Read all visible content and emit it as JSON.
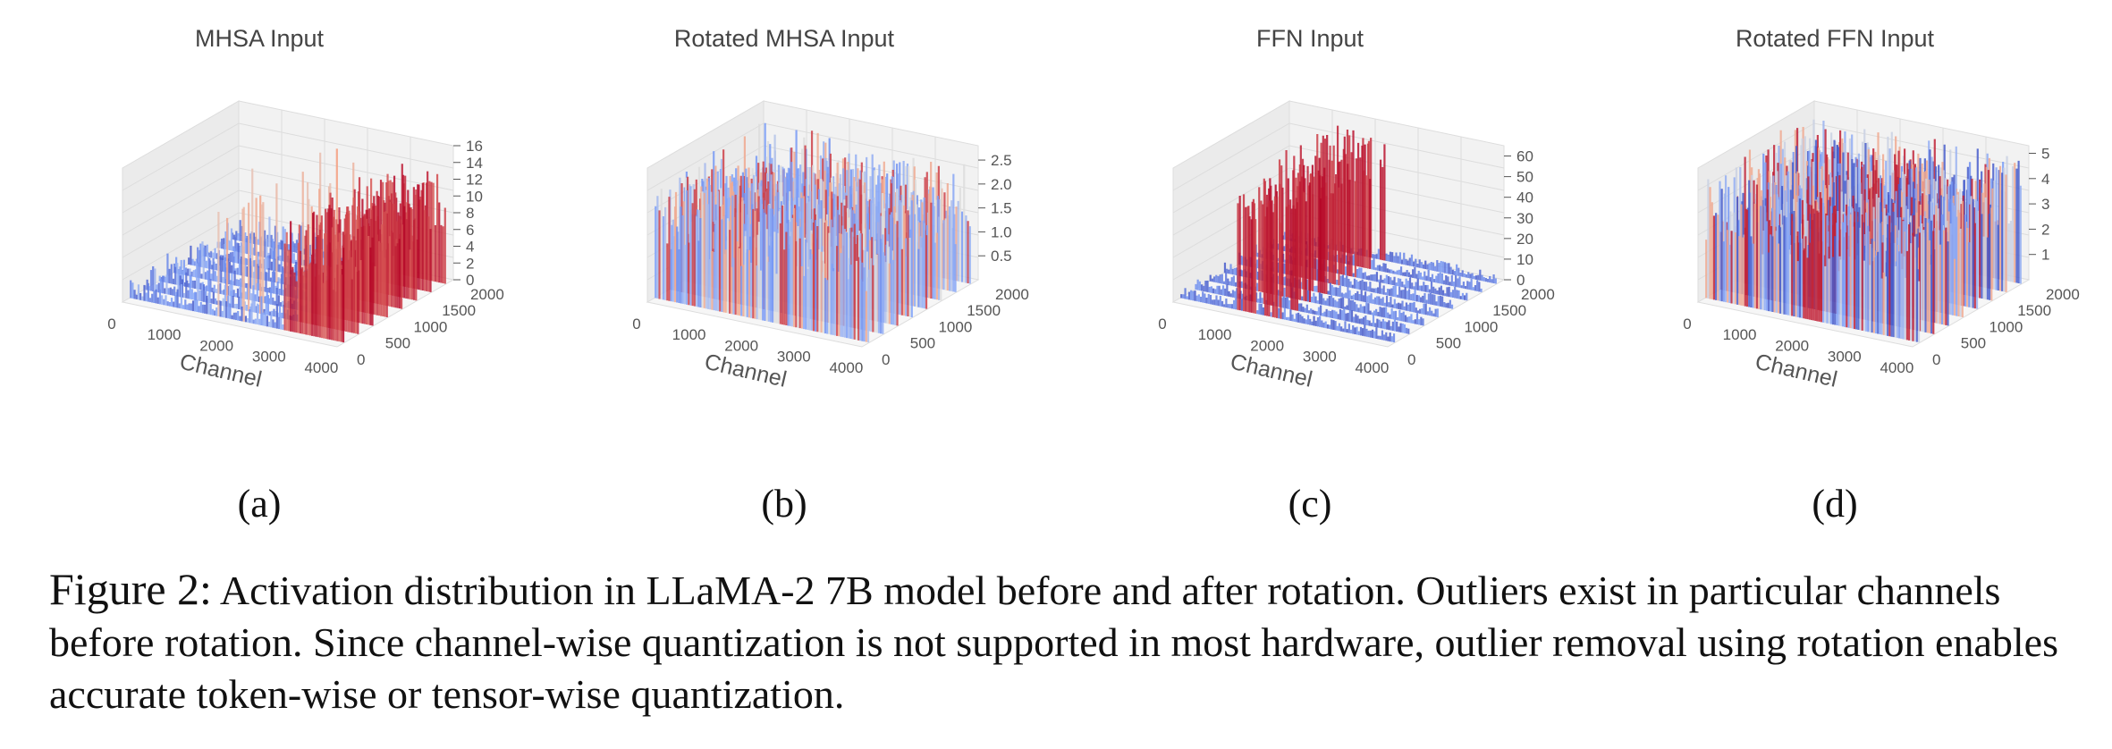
{
  "figure": {
    "panels": [
      {
        "title": "MHSA Input",
        "letter": "(a)"
      },
      {
        "title": "Rotated MHSA Input",
        "letter": "(b)"
      },
      {
        "title": "FFN Input",
        "letter": "(c)"
      },
      {
        "title": "Rotated FFN Input",
        "letter": "(d)"
      }
    ],
    "caption_label": "Figure 2:",
    "caption_text": "Activation distribution in LLaMA-2 7B model before and after rotation. Outliers exist in particular channels before rotation. Since channel-wise quantization is not supported in most hardware, outlier removal using rotation enables accurate token-wise or tensor-wise quantization."
  },
  "chart_data": [
    {
      "type": "bar3d",
      "title": "MHSA Input",
      "xlabel": "Channel",
      "x_ticks": [
        "0",
        "1000",
        "2000",
        "3000",
        "4000"
      ],
      "y_ticks": [
        "0",
        "500",
        "1000",
        "1500",
        "2000"
      ],
      "z_ticks": [
        "0",
        "2",
        "4",
        "6",
        "8",
        "10",
        "12",
        "14",
        "16"
      ],
      "xlim": [
        0,
        4096
      ],
      "ylim": [
        0,
        2048
      ],
      "zlim": [
        0,
        16
      ],
      "grid": true
    },
    {
      "type": "bar3d",
      "title": "Rotated MHSA Input",
      "xlabel": "Channel",
      "x_ticks": [
        "0",
        "1000",
        "2000",
        "3000",
        "4000"
      ],
      "y_ticks": [
        "0",
        "500",
        "1000",
        "1500",
        "2000"
      ],
      "z_ticks": [
        "0.5",
        "1.0",
        "1.5",
        "2.0",
        "2.5"
      ],
      "xlim": [
        0,
        4096
      ],
      "ylim": [
        0,
        2048
      ],
      "zlim": [
        0,
        2.8
      ],
      "grid": true
    },
    {
      "type": "bar3d",
      "title": "FFN Input",
      "xlabel": "Channel",
      "x_ticks": [
        "0",
        "1000",
        "2000",
        "3000",
        "4000"
      ],
      "y_ticks": [
        "0",
        "500",
        "1000",
        "1500",
        "2000"
      ],
      "z_ticks": [
        "0",
        "10",
        "20",
        "30",
        "40",
        "50",
        "60"
      ],
      "xlim": [
        0,
        4096
      ],
      "ylim": [
        0,
        2048
      ],
      "zlim": [
        0,
        65
      ],
      "grid": true
    },
    {
      "type": "bar3d",
      "title": "Rotated FFN Input",
      "xlabel": "Channel",
      "x_ticks": [
        "0",
        "1000",
        "2000",
        "3000",
        "4000"
      ],
      "y_ticks": [
        "0",
        "500",
        "1000",
        "1500",
        "2000"
      ],
      "z_ticks": [
        "1",
        "2",
        "3",
        "4",
        "5"
      ],
      "xlim": [
        0,
        4096
      ],
      "ylim": [
        0,
        2048
      ],
      "zlim": [
        0,
        5.3
      ],
      "grid": true
    }
  ]
}
